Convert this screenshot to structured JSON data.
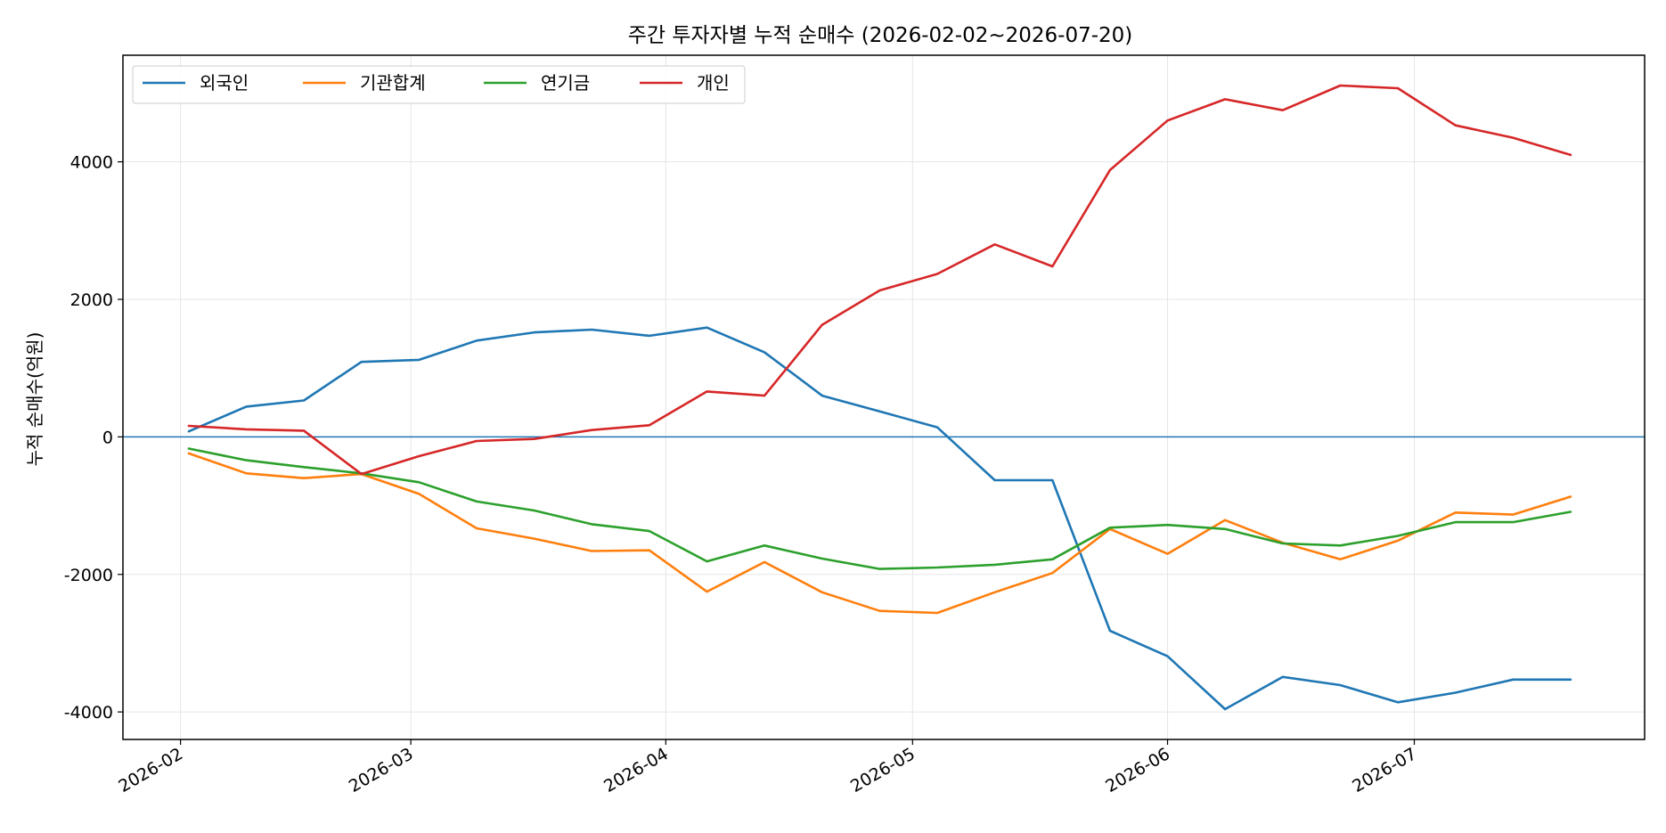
{
  "chart_data": {
    "type": "line",
    "title": "주간 투자자별 누적 순매수 (2026-02-02~2026-07-20)",
    "xlabel": "",
    "ylabel": "누적 순매수(억원)",
    "ylim": [
      -4400,
      5550
    ],
    "xlim": [
      "2026-01-25",
      "2026-07-29"
    ],
    "grid": true,
    "legend_position": "top-left",
    "zero_line_color": "#1f77b4",
    "x": [
      "2026-02-02",
      "2026-02-09",
      "2026-02-16",
      "2026-02-23",
      "2026-03-02",
      "2026-03-09",
      "2026-03-16",
      "2026-03-23",
      "2026-03-30",
      "2026-04-06",
      "2026-04-13",
      "2026-04-20",
      "2026-04-27",
      "2026-05-04",
      "2026-05-11",
      "2026-05-18",
      "2026-05-25",
      "2026-06-01",
      "2026-06-08",
      "2026-06-15",
      "2026-06-22",
      "2026-06-29",
      "2026-07-06",
      "2026-07-13",
      "2026-07-20"
    ],
    "xticks": [
      {
        "date": "2026-02-01",
        "label": "2026-02"
      },
      {
        "date": "2026-03-01",
        "label": "2026-03"
      },
      {
        "date": "2026-04-01",
        "label": "2026-04"
      },
      {
        "date": "2026-05-01",
        "label": "2026-05"
      },
      {
        "date": "2026-06-01",
        "label": "2026-06"
      },
      {
        "date": "2026-07-01",
        "label": "2026-07"
      }
    ],
    "yticks": [
      {
        "value": 4000,
        "label": "4000"
      },
      {
        "value": 2000,
        "label": "2000"
      },
      {
        "value": 0,
        "label": "0"
      },
      {
        "value": -2000,
        "label": "-2000"
      },
      {
        "value": -4000,
        "label": "-4000"
      }
    ],
    "series": [
      {
        "name": "외국인",
        "color": "#1f77b4",
        "values": [
          80,
          440,
          530,
          1090,
          1120,
          1400,
          1520,
          1560,
          1470,
          1590,
          1230,
          600,
          370,
          140,
          -630,
          -630,
          -2820,
          -3190,
          -3960,
          -3490,
          -3610,
          -3860,
          -3720,
          -3530,
          -3530
        ]
      },
      {
        "name": "기관합계",
        "color": "#ff7f0e",
        "values": [
          -240,
          -530,
          -600,
          -540,
          -830,
          -1330,
          -1480,
          -1660,
          -1650,
          -2250,
          -1820,
          -2260,
          -2530,
          -2560,
          -2260,
          -1980,
          -1340,
          -1700,
          -1210,
          -1540,
          -1780,
          -1510,
          -1100,
          -1130,
          -870
        ]
      },
      {
        "name": "연기금",
        "color": "#2ca02c",
        "values": [
          -170,
          -340,
          -440,
          -530,
          -660,
          -940,
          -1070,
          -1270,
          -1370,
          -1810,
          -1580,
          -1770,
          -1920,
          -1900,
          -1860,
          -1780,
          -1320,
          -1280,
          -1340,
          -1550,
          -1580,
          -1440,
          -1240,
          -1240,
          -1090
        ]
      },
      {
        "name": "개인",
        "color": "#d62728",
        "values": [
          160,
          110,
          90,
          -540,
          -280,
          -60,
          -30,
          100,
          170,
          660,
          600,
          1630,
          2130,
          2370,
          2800,
          2480,
          3880,
          4600,
          4910,
          4750,
          5110,
          5070,
          4530,
          4350,
          4100
        ]
      }
    ]
  }
}
